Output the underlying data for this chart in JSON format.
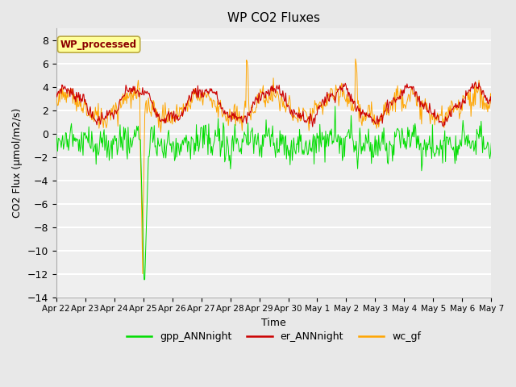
{
  "title": "WP CO2 Fluxes",
  "xlabel": "Time",
  "ylabel": "CO2 Flux (μmol/m2/s)",
  "ylim": [
    -14,
    9
  ],
  "yticks": [
    -14,
    -12,
    -10,
    -8,
    -6,
    -4,
    -2,
    0,
    2,
    4,
    6,
    8
  ],
  "colors": {
    "gpp": "#00DD00",
    "er": "#CC0000",
    "wc": "#FFA500",
    "fig_bg": "#E8E8E8",
    "plot_bg": "#EFEFEF"
  },
  "legend_label": "WP_processed",
  "legend_label_color": "#8B0000",
  "legend_box_facecolor": "#FFFF99",
  "legend_box_edgecolor": "#BBAA44",
  "series_labels": [
    "gpp_ANNnight",
    "er_ANNnight",
    "wc_gf"
  ],
  "xtick_labels": [
    "Apr 22",
    "Apr 23",
    "Apr 24",
    "Apr 25",
    "Apr 26",
    "Apr 27",
    "Apr 28",
    "Apr 29",
    "Apr 30",
    "May 1",
    "May 2",
    "May 3",
    "May 4",
    "May 5",
    "May 6",
    "May 7"
  ],
  "n_points": 600,
  "random_seed": 7
}
